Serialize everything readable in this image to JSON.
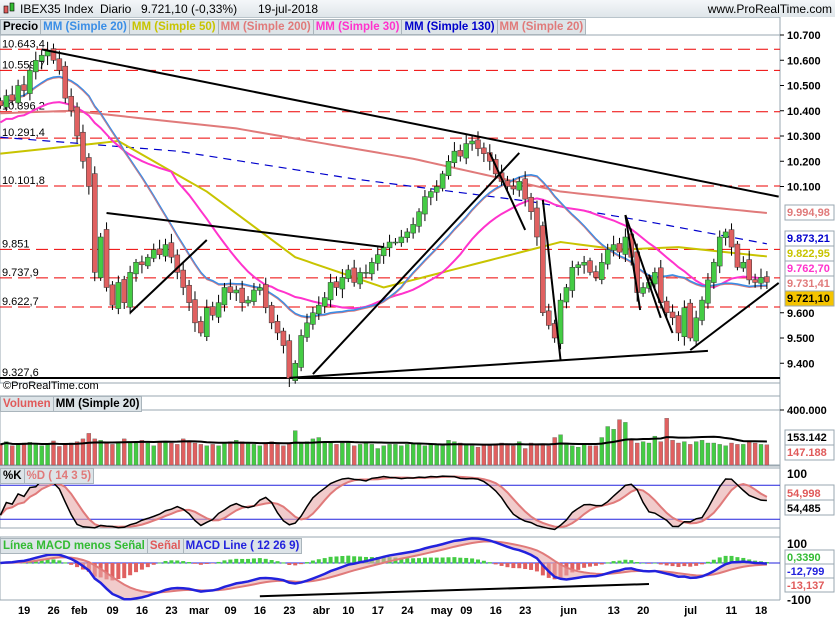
{
  "header": {
    "symbol": "IBEX35 Index",
    "period": "Diario",
    "last": "9.721,10 (-0,33%)",
    "date": "19-jul-2018",
    "site": "www.ProRealTime.com"
  },
  "price_legend": [
    {
      "label": "Precio",
      "color": "#000000"
    },
    {
      "label": "MM (Simple 20)",
      "color": "#3a8ee6"
    },
    {
      "label": "MM (Simple 50)",
      "color": "#c8c400"
    },
    {
      "label": "MM (Simple 200)",
      "color": "#e07a7a"
    },
    {
      "label": "MM (Simple 30)",
      "color": "#ff33cc"
    },
    {
      "label": "MM (Simple 130)",
      "color": "#0000cc"
    },
    {
      "label": "MM (Simple 20)",
      "color": "#e07a7a"
    }
  ],
  "volume_legend": [
    {
      "label": "Volumen",
      "color": "#e05a5a"
    },
    {
      "label": "MM (Simple 20)",
      "color": "#000000"
    }
  ],
  "stoch_legend": [
    {
      "label": "%K",
      "color": "#000000"
    },
    {
      "label": "%D ( 14 3 5)",
      "color": "#e07a7a"
    }
  ],
  "macd_legend": [
    {
      "label": "Línea MACD menos Señal",
      "color": "#33bb33"
    },
    {
      "label": "Señal",
      "color": "#e05a5a"
    },
    {
      "label": "MACD Line ( 12 26 9)",
      "color": "#2222dd"
    }
  ],
  "copyright": "©ProRealTime.com",
  "chart_data": {
    "type": "candlestick",
    "title": "IBEX35 Index Diario",
    "ylim": [
      9300,
      10750
    ],
    "yticks": [
      "10.700",
      "10.600",
      "10.500",
      "10.400",
      "10.300",
      "10.200",
      "10.100",
      "9.600",
      "9.500",
      "9.400"
    ],
    "ytick_values": [
      10700,
      10600,
      10500,
      10400,
      10300,
      10200,
      10100,
      9600,
      9500,
      9400
    ],
    "xticks": [
      {
        "i": 4,
        "label": "19"
      },
      {
        "i": 9,
        "label": "26"
      },
      {
        "i": 13,
        "label": "feb"
      },
      {
        "i": 19,
        "label": "09"
      },
      {
        "i": 24,
        "label": "16"
      },
      {
        "i": 29,
        "label": "23"
      },
      {
        "i": 33,
        "label": "mar"
      },
      {
        "i": 39,
        "label": "09"
      },
      {
        "i": 44,
        "label": "16"
      },
      {
        "i": 49,
        "label": "23"
      },
      {
        "i": 54,
        "label": "abr"
      },
      {
        "i": 59,
        "label": "10"
      },
      {
        "i": 64,
        "label": "17"
      },
      {
        "i": 69,
        "label": "24"
      },
      {
        "i": 74,
        "label": "may"
      },
      {
        "i": 79,
        "label": "09"
      },
      {
        "i": 84,
        "label": "16"
      },
      {
        "i": 89,
        "label": "23"
      },
      {
        "i": 96,
        "label": "jun"
      },
      {
        "i": 104,
        "label": "13"
      },
      {
        "i": 109,
        "label": "20"
      },
      {
        "i": 117,
        "label": "jul"
      },
      {
        "i": 124,
        "label": "11"
      },
      {
        "i": 129,
        "label": "18"
      }
    ],
    "closes": [
      10420,
      10460,
      10440,
      10500,
      10480,
      10560,
      10600,
      10620,
      10640,
      10600,
      10560,
      10450,
      10400,
      10300,
      10200,
      10100,
      9760,
      9900,
      9700,
      9630,
      9720,
      9640,
      9760,
      9800,
      9790,
      9820,
      9850,
      9830,
      9870,
      9820,
      9760,
      9700,
      9640,
      9560,
      9520,
      9620,
      9590,
      9640,
      9700,
      9680,
      9690,
      9640,
      9650,
      9690,
      9700,
      9620,
      9560,
      9520,
      9470,
      9340,
      9400,
      9510,
      9560,
      9600,
      9630,
      9660,
      9720,
      9700,
      9740,
      9770,
      9720,
      9760,
      9760,
      9800,
      9830,
      9860,
      9880,
      9880,
      9900,
      9920,
      9950,
      10000,
      10060,
      10080,
      10100,
      10150,
      10200,
      10240,
      10220,
      10270,
      10280,
      10250,
      10230,
      10200,
      10150,
      10120,
      10100,
      10090,
      10120,
      10050,
      10000,
      9900,
      9600,
      9550,
      9500,
      9650,
      9700,
      9780,
      9790,
      9800,
      9760,
      9740,
      9800,
      9850,
      9870,
      9840,
      9900,
      9820,
      9680,
      9700,
      9720,
      9760,
      9640,
      9600,
      9580,
      9520,
      9620,
      9500,
      9580,
      9650,
      9730,
      9800,
      9900,
      9920,
      9860,
      9780,
      9800,
      9730,
      9720,
      9740,
      9721
    ],
    "volumes": [
      150,
      170,
      140,
      150,
      160,
      165,
      150,
      140,
      150,
      175,
      135,
      150,
      160,
      170,
      190,
      230,
      190,
      180,
      160,
      150,
      170,
      190,
      170,
      160,
      180,
      160,
      140,
      170,
      170,
      160,
      150,
      190,
      170,
      160,
      150,
      140,
      150,
      140,
      160,
      170,
      180,
      170,
      160,
      150,
      140,
      160,
      170,
      150,
      140,
      160,
      250,
      160,
      170,
      190,
      200,
      170,
      160,
      150,
      160,
      170,
      140,
      150,
      160,
      150,
      120,
      140,
      150,
      150,
      140,
      150,
      160,
      150,
      140,
      150,
      150,
      140,
      180,
      170,
      160,
      150,
      140,
      130,
      150,
      140,
      150,
      160,
      150,
      140,
      170,
      120,
      160,
      150,
      150,
      140,
      200,
      220,
      160,
      140,
      130,
      150,
      140,
      140,
      200,
      280,
      260,
      330,
      310,
      190,
      160,
      170,
      160,
      210,
      170,
      340,
      180,
      160,
      170,
      150,
      170,
      180,
      160,
      160,
      150,
      140,
      160,
      150,
      150,
      170,
      160,
      150,
      147
    ],
    "horizontal_levels": [
      {
        "label": "10.643,4",
        "value": 10643.4
      },
      {
        "label": "10.559,7",
        "value": 10559.7
      },
      {
        "label": "10.396,2",
        "value": 10396.2
      },
      {
        "label": "10.291,4",
        "value": 10291.4
      },
      {
        "label": "10.101,8",
        "value": 10101.8
      },
      {
        "label": "9.851",
        "value": 9851
      },
      {
        "label": "9.737,9",
        "value": 9737.9
      },
      {
        "label": "9.622,7",
        "value": 9622.7
      },
      {
        "label": "9.327,6",
        "value": 9327.6
      }
    ],
    "trendlines": [
      [
        7,
        10643,
        132,
        10060
      ],
      [
        18,
        9995,
        65,
        9860
      ],
      [
        22,
        9600,
        35,
        9888
      ],
      [
        53,
        9357,
        88,
        10233
      ],
      [
        49,
        9342,
        120,
        9449
      ],
      [
        117,
        9452,
        132,
        9718
      ],
      [
        83,
        10233,
        89,
        9928
      ],
      [
        92,
        10047,
        95,
        9413
      ],
      [
        106,
        9987,
        108.5,
        9611
      ],
      [
        106,
        9987,
        112,
        9580
      ],
      [
        110,
        9750,
        114,
        9520
      ]
    ],
    "ma50": [
      [
        0,
        10230
      ],
      [
        20,
        10280
      ],
      [
        35,
        10080
      ],
      [
        50,
        9820
      ],
      [
        65,
        9700
      ],
      [
        80,
        9790
      ],
      [
        95,
        9880
      ],
      [
        105,
        9850
      ],
      [
        115,
        9860
      ],
      [
        130,
        9823
      ]
    ],
    "ma130": [
      [
        0,
        10295
      ],
      [
        30,
        10240
      ],
      [
        60,
        10130
      ],
      [
        90,
        10040
      ],
      [
        110,
        9960
      ],
      [
        130,
        9873
      ]
    ],
    "ma200": [
      [
        0,
        10390
      ],
      [
        12,
        10400
      ],
      [
        40,
        10330
      ],
      [
        70,
        10210
      ],
      [
        95,
        10080
      ],
      [
        115,
        10030
      ],
      [
        130,
        9995
      ]
    ],
    "right_labels": [
      {
        "text": "9.994,98",
        "value": 9994.98,
        "color": "#e07a7a"
      },
      {
        "text": "9.873,21",
        "value": 9873.21,
        "color": "#0000cc"
      },
      {
        "text": "9.822,95",
        "value": 9822.95,
        "color": "#c8c400"
      },
      {
        "text": "9.762,70",
        "value": 9762.7,
        "color": "#ff33cc"
      },
      {
        "text": "9.731,41",
        "value": 9731.41,
        "color": "#e07a7a"
      },
      {
        "text": "9.721,10",
        "value": 9721.1,
        "color": "#000000"
      }
    ],
    "volume_axis": {
      "tick": "400.000",
      "tick_value": 400000,
      "ma_label": "153.142",
      "last_label": "147.188"
    },
    "stoch_axis": {
      "tick": "100",
      "d_label": "54,998",
      "k_label": "54,485"
    },
    "macd_axis": {
      "tick_top": "100",
      "tick_bottom": "-100",
      "hist_label": "0,3390",
      "macd_label": "-12,799",
      "signal_label": "-13,137"
    }
  }
}
